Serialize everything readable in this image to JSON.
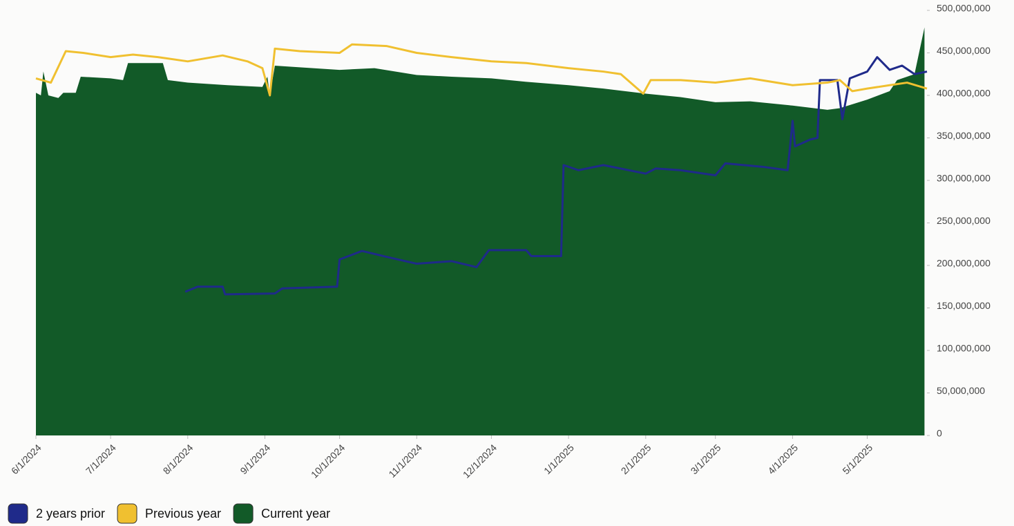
{
  "chart_data": {
    "type": "line",
    "xlim": [
      "6/1/2024",
      "5/25/2025"
    ],
    "xticks": [
      "6/1/2024",
      "7/1/2024",
      "8/1/2024",
      "9/1/2024",
      "10/1/2024",
      "11/1/2024",
      "12/1/2024",
      "1/1/2025",
      "2/1/2025",
      "3/1/2025",
      "4/1/2025",
      "5/1/2025"
    ],
    "ylim": [
      0,
      500000000
    ],
    "yticks": [
      0,
      {
        "value": 50000000,
        "label": "50,000,000"
      },
      {
        "value": 100000000,
        "label": "100,000,000"
      },
      {
        "value": 150000000,
        "label": "150,000,000"
      },
      {
        "value": 200000000,
        "label": "200,000,000"
      },
      {
        "value": 250000000,
        "label": "250,000,000"
      },
      {
        "value": 300000000,
        "label": "300,000,000"
      },
      {
        "value": 350000000,
        "label": "350,000,000"
      },
      {
        "value": 400000000,
        "label": "400,000,000"
      },
      {
        "value": 450000000,
        "label": "450,000,000"
      },
      {
        "value": 500000000,
        "label": "500,000,000"
      }
    ],
    "legend": "bottom-left",
    "series": [
      {
        "name": "2 years prior",
        "color": "#1f2a8a",
        "kind": "line",
        "x": [
          "7/31/2024",
          "8/5/2024",
          "8/15/2024",
          "8/16/2024",
          "9/5/2024",
          "9/8/2024",
          "9/30/2024",
          "10/1/2024",
          "10/10/2024",
          "10/20/2024",
          "11/1/2024",
          "11/15/2024",
          "11/25/2024",
          "11/30/2024",
          "12/15/2024",
          "12/17/2024",
          "12/29/2024",
          "12/30/2024",
          "1/5/2025",
          "1/15/2025",
          "2/1/2025",
          "2/5/2025",
          "2/15/2025",
          "3/1/2025",
          "3/5/2025",
          "3/20/2025",
          "3/30/2025",
          "3/31/2025",
          "4/1/2025",
          "4/2/2025",
          "4/8/2025",
          "4/11/2025",
          "4/12/2025",
          "4/19/2025",
          "4/21/2025",
          "4/24/2025",
          "5/1/2025",
          "5/5/2025",
          "5/10/2025",
          "5/15/2025",
          "5/20/2025",
          "5/25/2025"
        ],
        "values": [
          169000000,
          175000000,
          175000000,
          166000000,
          167000000,
          173000000,
          175000000,
          207000000,
          217000000,
          210000000,
          202000000,
          205000000,
          198000000,
          218000000,
          218000000,
          211000000,
          211000000,
          318000000,
          312000000,
          318000000,
          308000000,
          314000000,
          312000000,
          306000000,
          320000000,
          316000000,
          312000000,
          340000000,
          370000000,
          340000000,
          348000000,
          350000000,
          418000000,
          418000000,
          372000000,
          420000000,
          428000000,
          445000000,
          430000000,
          435000000,
          425000000,
          428000000
        ]
      },
      {
        "name": "Previous year",
        "color": "#f0c030",
        "kind": "line",
        "x": [
          "6/1/2024",
          "6/7/2024",
          "6/13/2024",
          "6/20/2024",
          "7/1/2024",
          "7/10/2024",
          "7/20/2024",
          "8/1/2024",
          "8/15/2024",
          "8/25/2024",
          "8/31/2024",
          "9/3/2024",
          "9/5/2024",
          "9/15/2024",
          "10/1/2024",
          "10/6/2024",
          "10/20/2024",
          "11/1/2024",
          "11/15/2024",
          "12/1/2024",
          "12/15/2024",
          "1/1/2025",
          "1/15/2025",
          "1/22/2025",
          "1/31/2025",
          "2/3/2025",
          "2/15/2025",
          "3/1/2025",
          "3/15/2025",
          "4/1/2025",
          "4/15/2025",
          "4/20/2025",
          "4/25/2025",
          "5/1/2025",
          "5/10/2025",
          "5/17/2025",
          "5/25/2025"
        ],
        "values": [
          420000000,
          415000000,
          452000000,
          450000000,
          445000000,
          448000000,
          445000000,
          440000000,
          447000000,
          440000000,
          432000000,
          400000000,
          455000000,
          452000000,
          450000000,
          460000000,
          458000000,
          450000000,
          445000000,
          440000000,
          438000000,
          432000000,
          428000000,
          425000000,
          402000000,
          418000000,
          418000000,
          415000000,
          420000000,
          412000000,
          415000000,
          418000000,
          405000000,
          408000000,
          412000000,
          415000000,
          408000000
        ]
      },
      {
        "name": "Current year",
        "color": "#125a28",
        "kind": "area",
        "x": [
          "6/1/2024",
          "6/3/2024",
          "6/4/2024",
          "6/6/2024",
          "6/10/2024",
          "6/12/2024",
          "6/17/2024",
          "6/19/2024",
          "7/1/2024",
          "7/6/2024",
          "7/8/2024",
          "7/22/2024",
          "7/24/2024",
          "8/1/2024",
          "8/17/2024",
          "8/31/2024",
          "9/2/2024",
          "9/3/2024",
          "9/5/2024",
          "9/15/2024",
          "10/1/2024",
          "10/15/2024",
          "11/1/2024",
          "11/15/2024",
          "12/1/2024",
          "12/15/2024",
          "1/1/2025",
          "1/15/2025",
          "2/1/2025",
          "2/15/2025",
          "3/1/2025",
          "3/15/2025",
          "4/1/2025",
          "4/15/2025",
          "4/20/2025",
          "5/1/2025",
          "5/10/2025",
          "5/13/2025",
          "5/20/2025",
          "5/24/2025"
        ],
        "values": [
          403000000,
          400000000,
          428000000,
          400000000,
          397000000,
          403000000,
          403000000,
          422000000,
          420000000,
          418000000,
          438000000,
          438000000,
          418000000,
          415000000,
          412000000,
          410000000,
          422000000,
          400000000,
          435000000,
          433000000,
          430000000,
          432000000,
          424000000,
          422000000,
          420000000,
          416000000,
          412000000,
          408000000,
          402000000,
          398000000,
          392000000,
          393000000,
          388000000,
          383000000,
          385000000,
          395000000,
          405000000,
          418000000,
          425000000,
          480000000
        ]
      }
    ]
  }
}
